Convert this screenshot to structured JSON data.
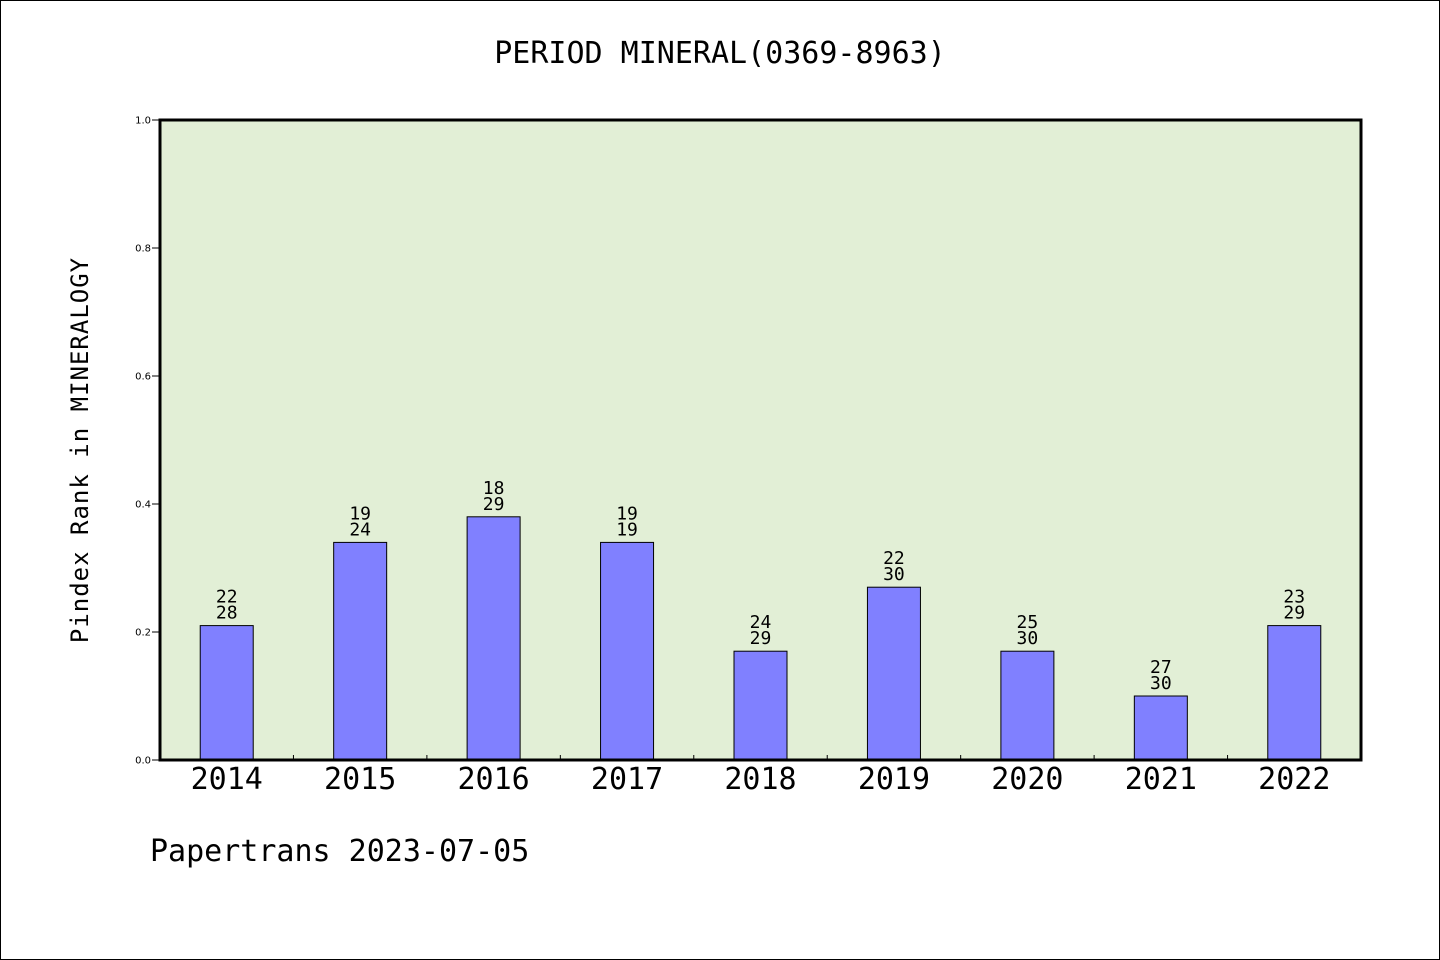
{
  "chart_data": {
    "type": "bar",
    "title": "PERIOD MINERAL(0369-8963)",
    "ylabel": "Pindex Rank in MINERALOGY",
    "xlabel": "",
    "footer": "Papertrans 2023-07-05",
    "categories": [
      "2014",
      "2015",
      "2016",
      "2017",
      "2018",
      "2019",
      "2020",
      "2021",
      "2022"
    ],
    "values": [
      0.21,
      0.34,
      0.38,
      0.34,
      0.17,
      0.27,
      0.17,
      0.1,
      0.21
    ],
    "annotations_top": [
      "22",
      "19",
      "18",
      "19",
      "24",
      "22",
      "25",
      "27",
      "23"
    ],
    "annotations_bottom": [
      "28",
      "24",
      "29",
      "19",
      "29",
      "30",
      "30",
      "30",
      "29"
    ],
    "ylim": [
      0,
      1.0
    ],
    "yticks": [
      "0.0",
      "0.2",
      "0.4",
      "0.6",
      "0.8",
      "1.0"
    ],
    "grid": false,
    "colors": {
      "bar": "#8080ff",
      "plot_background": "#e2efd6",
      "border": "#000000"
    }
  }
}
